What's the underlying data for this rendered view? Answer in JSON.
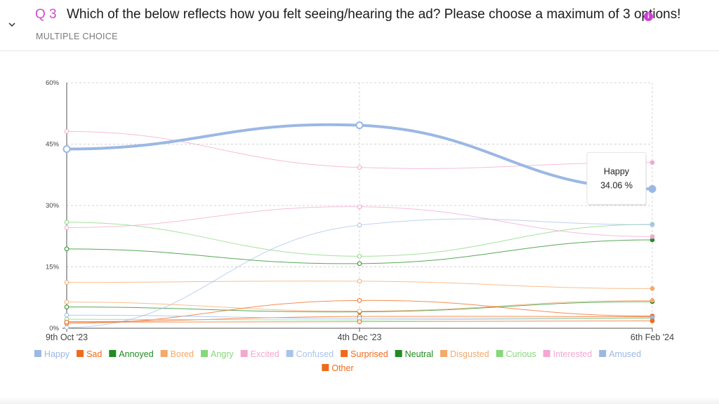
{
  "question": {
    "number": "Q 3",
    "title": "Which of the below reflects how you felt seeing/hearing the ad? Please choose a maximum of 3 options!",
    "type": "MULTIPLE CHOICE"
  },
  "icons": {
    "collapse": "chevron-down-icon",
    "info": "info-icon"
  },
  "colors": {
    "accent": "#d24cd0"
  },
  "chart_data": {
    "type": "line",
    "x": [
      "9th Oct '23",
      "4th Dec '23",
      "6th Feb '24"
    ],
    "ylim": [
      0,
      60
    ],
    "yticks": [
      "0%",
      "15%",
      "30%",
      "45%",
      "60%"
    ],
    "grid": true,
    "legend_position": "bottom",
    "series": [
      {
        "name": "Happy",
        "color": "#9bb8e4",
        "values": [
          43.8,
          49.6,
          34.06
        ],
        "highlight": true
      },
      {
        "name": "Sad",
        "color": "#f06a1c",
        "values": [
          1.6,
          2.9,
          2.8
        ]
      },
      {
        "name": "Annoyed",
        "color": "#228b22",
        "values": [
          5.2,
          4.0,
          6.5
        ]
      },
      {
        "name": "Bored",
        "color": "#f5a96b",
        "values": [
          6.4,
          4.2,
          6.8
        ]
      },
      {
        "name": "Angry",
        "color": "#86d87a",
        "values": [
          25.9,
          17.6,
          25.4
        ]
      },
      {
        "name": "Excited",
        "color": "#f4a7cf",
        "values": [
          48.1,
          39.3,
          40.5
        ]
      },
      {
        "name": "Confused",
        "color": "#a9c3eb",
        "values": [
          0.2,
          25.2,
          25.3
        ]
      },
      {
        "name": "Surprised",
        "color": "#f06a1c",
        "values": [
          1.2,
          6.8,
          3.0
        ]
      },
      {
        "name": "Neutral",
        "color": "#228b22",
        "values": [
          19.4,
          15.8,
          21.6
        ]
      },
      {
        "name": "Disgusted",
        "color": "#f5a96b",
        "values": [
          11.2,
          11.5,
          9.7
        ]
      },
      {
        "name": "Curious",
        "color": "#86d87a",
        "values": [
          2.2,
          2.0,
          2.4
        ]
      },
      {
        "name": "Interested",
        "color": "#f4a7cf",
        "values": [
          24.6,
          29.7,
          22.4
        ]
      },
      {
        "name": "Amused",
        "color": "#9bb8e4",
        "values": [
          3.2,
          2.4,
          2.6
        ]
      },
      {
        "name": "Other",
        "color": "#f06a1c",
        "values": [
          1.5,
          1.6,
          1.8
        ]
      }
    ],
    "tooltip": {
      "series": "Happy",
      "value": "34.06 %"
    }
  }
}
